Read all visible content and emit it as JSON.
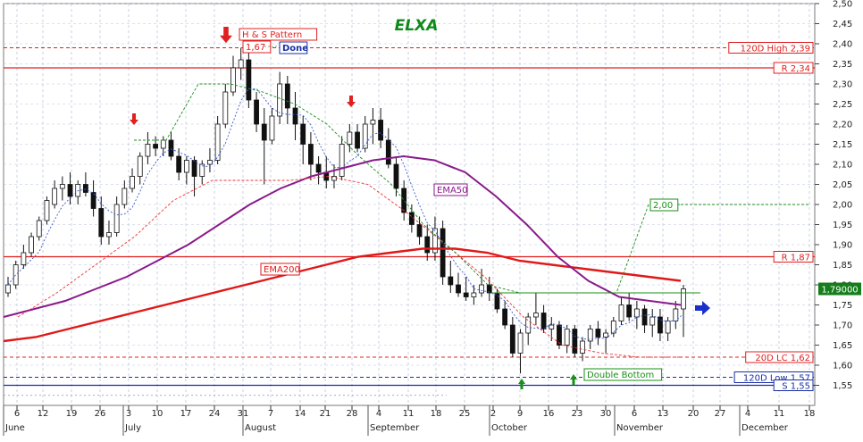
{
  "chart_data": {
    "type": "candlestick",
    "title": "ELXA",
    "ylim": [
      1.5,
      2.5
    ],
    "y_ticks": [
      "1,55",
      "1,60",
      "1,65",
      "1,70",
      "1,75",
      "1,80",
      "1,85",
      "1,90",
      "1,95",
      "2,00",
      "2,05",
      "2,10",
      "2,15",
      "2,20",
      "2,25",
      "2,30",
      "2,35",
      "2,40",
      "2,45",
      "2,50"
    ],
    "x_day_ticks": [
      "6",
      "12",
      "19",
      "26",
      "3",
      "10",
      "17",
      "24",
      "31",
      "7",
      "14",
      "21",
      "28",
      "4",
      "11",
      "18",
      "25",
      "2",
      "9",
      "16",
      "23",
      "30",
      "6",
      "13",
      "20",
      "27",
      "4",
      "11",
      "18"
    ],
    "x_month_labels": [
      "June",
      "July",
      "August",
      "September",
      "October",
      "November",
      "December"
    ],
    "last_price": "1,79000",
    "horizontal_levels": [
      {
        "label": "120D High 2,39",
        "value": 2.39,
        "style": "dashed-red"
      },
      {
        "label": "R 2,34",
        "value": 2.34,
        "style": "solid-red"
      },
      {
        "label": "R 1,87",
        "value": 1.87,
        "style": "solid-red"
      },
      {
        "label": "20D LC 1,62",
        "value": 1.62,
        "style": "dashed-red"
      },
      {
        "label": "120D Low 1,57",
        "value": 1.57,
        "style": "dashed-blue"
      },
      {
        "label": "S 1,55",
        "value": 1.55,
        "style": "solid-blue"
      }
    ],
    "annotations": [
      {
        "text": "H & S Pattern"
      },
      {
        "text": "1,67"
      },
      {
        "text": "Done"
      },
      {
        "text": "EMA50"
      },
      {
        "text": "EMA200"
      },
      {
        "text": "2,00"
      },
      {
        "text": "Double Bottom"
      }
    ],
    "candles": [
      [
        1.78,
        1.82,
        1.77,
        1.8
      ],
      [
        1.8,
        1.86,
        1.79,
        1.85
      ],
      [
        1.85,
        1.9,
        1.84,
        1.88
      ],
      [
        1.88,
        1.93,
        1.87,
        1.92
      ],
      [
        1.92,
        1.97,
        1.91,
        1.96
      ],
      [
        1.96,
        2.02,
        1.95,
        2.01
      ],
      [
        2.0,
        2.06,
        1.99,
        2.04
      ],
      [
        2.04,
        2.07,
        2.01,
        2.05
      ],
      [
        2.05,
        2.08,
        2.0,
        2.02
      ],
      [
        2.02,
        2.06,
        2.0,
        2.05
      ],
      [
        2.05,
        2.08,
        2.02,
        2.03
      ],
      [
        2.03,
        2.06,
        1.97,
        1.99
      ],
      [
        1.99,
        2.02,
        1.9,
        1.92
      ],
      [
        1.92,
        1.96,
        1.9,
        1.93
      ],
      [
        1.93,
        2.02,
        1.92,
        2.0
      ],
      [
        2.0,
        2.06,
        1.99,
        2.04
      ],
      [
        2.04,
        2.09,
        2.03,
        2.07
      ],
      [
        2.07,
        2.13,
        2.05,
        2.12
      ],
      [
        2.12,
        2.18,
        2.1,
        2.15
      ],
      [
        2.15,
        2.17,
        2.12,
        2.14
      ],
      [
        2.14,
        2.17,
        2.12,
        2.16
      ],
      [
        2.16,
        2.18,
        2.11,
        2.12
      ],
      [
        2.12,
        2.14,
        2.06,
        2.08
      ],
      [
        2.08,
        2.12,
        2.05,
        2.11
      ],
      [
        2.11,
        2.12,
        2.02,
        2.07
      ],
      [
        2.07,
        2.11,
        2.05,
        2.1
      ],
      [
        2.1,
        2.14,
        2.08,
        2.11
      ],
      [
        2.11,
        2.22,
        2.1,
        2.2
      ],
      [
        2.2,
        2.3,
        2.19,
        2.28
      ],
      [
        2.28,
        2.37,
        2.27,
        2.34
      ],
      [
        2.34,
        2.39,
        2.31,
        2.36
      ],
      [
        2.36,
        2.38,
        2.24,
        2.26
      ],
      [
        2.26,
        2.28,
        2.18,
        2.2
      ],
      [
        2.2,
        2.24,
        2.05,
        2.16
      ],
      [
        2.16,
        2.24,
        2.15,
        2.22
      ],
      [
        2.22,
        2.33,
        2.2,
        2.3
      ],
      [
        2.3,
        2.32,
        2.2,
        2.24
      ],
      [
        2.24,
        2.28,
        2.16,
        2.2
      ],
      [
        2.2,
        2.22,
        2.1,
        2.15
      ],
      [
        2.15,
        2.18,
        2.06,
        2.1
      ],
      [
        2.1,
        2.12,
        2.05,
        2.08
      ],
      [
        2.08,
        2.12,
        2.04,
        2.06
      ],
      [
        2.06,
        2.1,
        2.04,
        2.07
      ],
      [
        2.07,
        2.17,
        2.06,
        2.15
      ],
      [
        2.15,
        2.2,
        2.13,
        2.18
      ],
      [
        2.18,
        2.2,
        2.13,
        2.14
      ],
      [
        2.14,
        2.22,
        2.13,
        2.2
      ],
      [
        2.2,
        2.24,
        2.15,
        2.21
      ],
      [
        2.21,
        2.24,
        2.14,
        2.16
      ],
      [
        2.16,
        2.19,
        2.09,
        2.1
      ],
      [
        2.1,
        2.12,
        2.02,
        2.04
      ],
      [
        2.04,
        2.06,
        1.96,
        1.98
      ],
      [
        1.98,
        2.0,
        1.93,
        1.95
      ],
      [
        1.95,
        1.97,
        1.9,
        1.92
      ],
      [
        1.92,
        1.95,
        1.86,
        1.88
      ],
      [
        1.88,
        1.97,
        1.86,
        1.94
      ],
      [
        1.94,
        1.96,
        1.8,
        1.82
      ],
      [
        1.82,
        1.86,
        1.78,
        1.8
      ],
      [
        1.8,
        1.83,
        1.77,
        1.78
      ],
      [
        1.78,
        1.82,
        1.76,
        1.77
      ],
      [
        1.77,
        1.8,
        1.75,
        1.78
      ],
      [
        1.78,
        1.84,
        1.77,
        1.8
      ],
      [
        1.8,
        1.82,
        1.76,
        1.78
      ],
      [
        1.78,
        1.79,
        1.73,
        1.74
      ],
      [
        1.74,
        1.76,
        1.69,
        1.7
      ],
      [
        1.7,
        1.72,
        1.62,
        1.63
      ],
      [
        1.63,
        1.69,
        1.58,
        1.68
      ],
      [
        1.68,
        1.73,
        1.65,
        1.72
      ],
      [
        1.72,
        1.78,
        1.7,
        1.73
      ],
      [
        1.73,
        1.75,
        1.68,
        1.69
      ],
      [
        1.69,
        1.72,
        1.66,
        1.7
      ],
      [
        1.7,
        1.71,
        1.64,
        1.65
      ],
      [
        1.65,
        1.7,
        1.63,
        1.69
      ],
      [
        1.69,
        1.7,
        1.62,
        1.63
      ],
      [
        1.63,
        1.67,
        1.61,
        1.66
      ],
      [
        1.66,
        1.7,
        1.64,
        1.69
      ],
      [
        1.69,
        1.71,
        1.65,
        1.67
      ],
      [
        1.67,
        1.69,
        1.63,
        1.68
      ],
      [
        1.68,
        1.72,
        1.67,
        1.71
      ],
      [
        1.71,
        1.77,
        1.7,
        1.75
      ],
      [
        1.75,
        1.78,
        1.71,
        1.72
      ],
      [
        1.72,
        1.76,
        1.69,
        1.74
      ],
      [
        1.74,
        1.75,
        1.68,
        1.7
      ],
      [
        1.7,
        1.74,
        1.67,
        1.72
      ],
      [
        1.72,
        1.74,
        1.66,
        1.68
      ],
      [
        1.68,
        1.72,
        1.66,
        1.71
      ],
      [
        1.71,
        1.76,
        1.69,
        1.74
      ],
      [
        1.74,
        1.8,
        1.67,
        1.79
      ]
    ],
    "ema50": [
      1.72,
      1.74,
      1.76,
      1.79,
      1.82,
      1.86,
      1.9,
      1.95,
      2.0,
      2.04,
      2.07,
      2.09,
      2.11,
      2.12,
      2.11,
      2.08,
      2.02,
      1.95,
      1.87,
      1.81,
      1.77,
      1.76,
      1.75
    ],
    "ema200": [
      1.66,
      1.67,
      1.69,
      1.71,
      1.73,
      1.75,
      1.77,
      1.79,
      1.81,
      1.83,
      1.85,
      1.87,
      1.88,
      1.89,
      1.89,
      1.88,
      1.86,
      1.85,
      1.84,
      1.83,
      1.82,
      1.81
    ],
    "trail_stop_green": [
      2.16,
      2.16,
      2.3,
      2.3,
      2.28,
      2.25,
      2.2,
      2.12,
      2.05,
      1.95,
      1.88,
      1.8,
      1.78,
      1.78,
      1.78,
      1.78,
      2.0,
      2.0
    ],
    "trail_stop_red": [
      1.72,
      1.78,
      1.85,
      1.92,
      2.01,
      2.06,
      2.06,
      2.06,
      2.07,
      2.05,
      1.98,
      1.9,
      1.82,
      1.72,
      1.65,
      1.63,
      1.62,
      1.62
    ]
  }
}
